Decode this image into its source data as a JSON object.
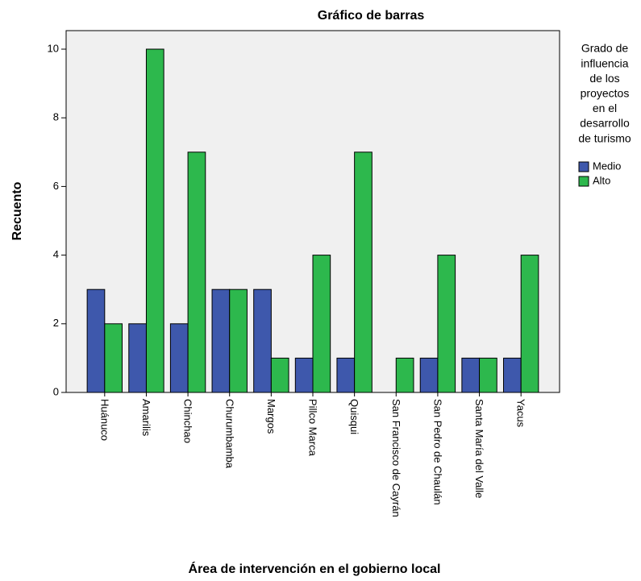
{
  "chart_data": {
    "type": "bar",
    "title": "Gráfico de barras",
    "x_label": "Área de intervención en el gobierno local",
    "y_label": "Recuento",
    "categories": [
      "Huánuco",
      "Amarilis",
      "Chinchao",
      "Churumbamba",
      "Margos",
      "Pillco Marca",
      "Quisqui",
      "San Francisco de Cayrán",
      "San Pedro de Chaulán",
      "Santa María del Valle",
      "Yacus"
    ],
    "series": [
      {
        "name": "Medio",
        "color": "#3e58ac",
        "values": [
          3,
          2,
          2,
          3,
          3,
          1,
          1,
          0,
          1,
          1,
          1
        ]
      },
      {
        "name": "Alto",
        "color": "#2db84d",
        "values": [
          2,
          10,
          7,
          3,
          1,
          4,
          7,
          1,
          4,
          1,
          4
        ]
      }
    ],
    "legend_title": [
      "Grado de",
      "influencia",
      "de los",
      "proyectos",
      "en el",
      "desarrollo",
      "de turismo"
    ],
    "ylim": [
      0,
      10.54
    ],
    "yticks": [
      0,
      2,
      4,
      6,
      8,
      10
    ]
  }
}
